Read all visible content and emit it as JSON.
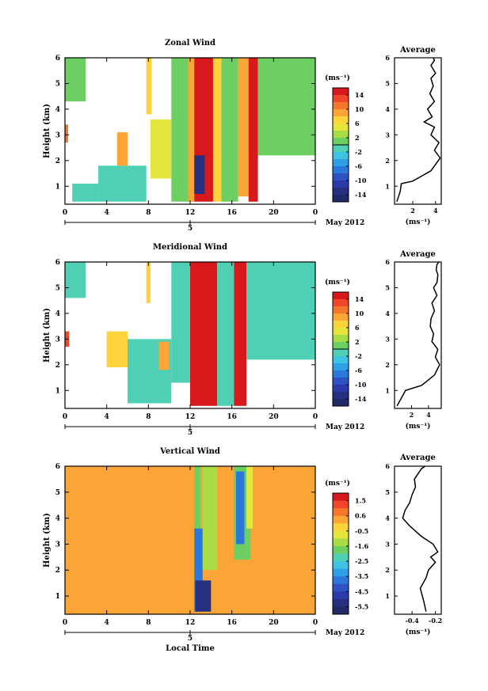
{
  "panels": [
    {
      "title": "Zonal Wind",
      "ylabel": "Height (km)",
      "unit": "(ms⁻¹)",
      "cbar_ticks": [
        "14",
        "10",
        "6",
        "2",
        "-2",
        "-6",
        "-10",
        "-14"
      ],
      "avg_title": "Average",
      "avg_xticks": [
        "2",
        "4"
      ],
      "avg_xlabel": "(ms⁻¹)"
    },
    {
      "title": "Meridional Wind",
      "ylabel": "Height (km)",
      "unit": "(ms⁻¹)",
      "cbar_ticks": [
        "14",
        "10",
        "6",
        "2",
        "-2",
        "-6",
        "-10",
        "-14"
      ],
      "avg_title": "Average",
      "avg_xticks": [
        "2",
        "4"
      ],
      "avg_xlabel": "(ms⁻¹)"
    },
    {
      "title": "Vertical Wind",
      "ylabel": "Height (km)",
      "unit": "(ms⁻¹)",
      "cbar_ticks": [
        "1.5",
        "0.6",
        "-0.5",
        "-1.6",
        "-2.5",
        "-3.5",
        "-4.5",
        "-5.5"
      ],
      "avg_title": "Average",
      "avg_xticks": [
        "-0.4",
        "-0.2"
      ],
      "avg_xlabel": "(ms⁻¹)"
    }
  ],
  "time_ticks": [
    "0",
    "4",
    "8",
    "12",
    "16",
    "20",
    "0"
  ],
  "y_ticks": [
    "1",
    "2",
    "3",
    "4",
    "5",
    "6"
  ],
  "date_day": "5",
  "date_label": "May 2012",
  "xlabel": "Local Time",
  "chart_data": [
    {
      "type": "heatmap",
      "title": "Zonal Wind",
      "xlabel": "",
      "ylabel": "Height (km)",
      "xlim": [
        0,
        24
      ],
      "ylim": [
        0.3,
        6
      ],
      "colorbar_range": [
        -16,
        16
      ],
      "bands": [
        {
          "x0": 7.8,
          "x1": 8.3,
          "y0": 3.8,
          "y1": 6,
          "value": 7
        },
        {
          "x0": 8.2,
          "x1": 10.2,
          "y0": 1.3,
          "y1": 3.6,
          "value": 5
        },
        {
          "x0": 10.2,
          "x1": 12.0,
          "y0": 0.4,
          "y1": 6,
          "value": 2
        },
        {
          "x0": 11.8,
          "x1": 12.6,
          "y0": 0.4,
          "y1": 6,
          "value": 9
        },
        {
          "x0": 12.4,
          "x1": 14.2,
          "y0": 0.4,
          "y1": 6,
          "value": 15
        },
        {
          "x0": 14.2,
          "x1": 15.0,
          "y0": 0.4,
          "y1": 6,
          "value": 8
        },
        {
          "x0": 15.0,
          "x1": 16.6,
          "y0": 0.4,
          "y1": 6,
          "value": 1
        },
        {
          "x0": 16.6,
          "x1": 17.6,
          "y0": 0.6,
          "y1": 6,
          "value": 10
        },
        {
          "x0": 17.6,
          "x1": 18.5,
          "y0": 0.4,
          "y1": 6,
          "value": 15
        },
        {
          "x0": 18.5,
          "x1": 24.0,
          "y0": 2.2,
          "y1": 6,
          "value": 1
        },
        {
          "x0": 0.0,
          "x1": 2.0,
          "y0": 4.3,
          "y1": 6,
          "value": 1
        },
        {
          "x0": 0.7,
          "x1": 3.2,
          "y0": 0.4,
          "y1": 1.1,
          "value": 0
        },
        {
          "x0": 3.2,
          "x1": 7.8,
          "y0": 0.4,
          "y1": 1.8,
          "value": -1
        },
        {
          "x0": 5.0,
          "x1": 6.0,
          "y0": 1.8,
          "y1": 3.1,
          "value": 9
        },
        {
          "x0": 0.0,
          "x1": 0.3,
          "y0": 2.7,
          "y1": 3.4,
          "value": 12
        },
        {
          "x0": 12.4,
          "x1": 13.4,
          "y0": 0.7,
          "y1": 2.2,
          "value": -12
        }
      ],
      "average_profile": {
        "xlabel": "(ms⁻¹)",
        "xlim": [
          0.4,
          4.5
        ],
        "x": [
          0.6,
          0.9,
          1.0,
          2.0,
          3.6,
          4.4,
          3.9,
          4.3,
          3.6,
          3.9,
          3.0,
          3.7,
          3.3,
          3.9,
          3.5,
          3.8,
          3.6,
          4.0,
          3.6,
          3.9,
          3.8
        ],
        "y": [
          0.4,
          0.8,
          1.1,
          1.2,
          1.6,
          2.1,
          2.4,
          2.7,
          3.0,
          3.3,
          3.5,
          3.7,
          4.0,
          4.3,
          4.6,
          4.9,
          5.2,
          5.4,
          5.7,
          5.9,
          6.0
        ]
      }
    },
    {
      "type": "heatmap",
      "title": "Meridional Wind",
      "xlabel": "",
      "ylabel": "Height (km)",
      "xlim": [
        0,
        24
      ],
      "ylim": [
        0.3,
        6
      ],
      "colorbar_range": [
        -16,
        16
      ],
      "bands": [
        {
          "x0": 7.8,
          "x1": 8.2,
          "y0": 4.4,
          "y1": 6,
          "value": 7
        },
        {
          "x0": 4.0,
          "x1": 6.0,
          "y0": 1.9,
          "y1": 3.3,
          "value": 8
        },
        {
          "x0": 6.0,
          "x1": 10.2,
          "y0": 0.5,
          "y1": 3.0,
          "value": 0
        },
        {
          "x0": 9.0,
          "x1": 10.0,
          "y0": 1.8,
          "y1": 2.9,
          "value": 10
        },
        {
          "x0": 10.2,
          "x1": 12.0,
          "y0": 1.3,
          "y1": 6,
          "value": 0
        },
        {
          "x0": 12.0,
          "x1": 14.6,
          "y0": 0.4,
          "y1": 6,
          "value": 15
        },
        {
          "x0": 14.6,
          "x1": 16.2,
          "y0": 0.4,
          "y1": 6,
          "value": 0
        },
        {
          "x0": 16.2,
          "x1": 17.4,
          "y0": 0.4,
          "y1": 6,
          "value": 15
        },
        {
          "x0": 17.4,
          "x1": 24.0,
          "y0": 2.2,
          "y1": 6,
          "value": 0
        },
        {
          "x0": 0.0,
          "x1": 2.0,
          "y0": 4.6,
          "y1": 6,
          "value": 0
        },
        {
          "x0": 0.0,
          "x1": 0.4,
          "y0": 2.7,
          "y1": 3.3,
          "value": 14
        }
      ],
      "average_profile": {
        "xlabel": "(ms⁻¹)",
        "xlim": [
          0,
          5.5
        ],
        "x": [
          0.3,
          0.8,
          1.3,
          3.2,
          4.7,
          5.3,
          4.8,
          5.1,
          4.4,
          4.6,
          4.2,
          4.3,
          4.7,
          4.4,
          5.0,
          4.6,
          5.0,
          5.1,
          4.9,
          5.0,
          5.2
        ],
        "y": [
          0.4,
          0.7,
          1.0,
          1.2,
          1.6,
          2.0,
          2.3,
          2.6,
          2.9,
          3.2,
          3.5,
          3.8,
          4.1,
          4.4,
          4.7,
          5.0,
          5.2,
          5.5,
          5.7,
          5.9,
          6.0
        ]
      }
    },
    {
      "type": "heatmap",
      "title": "Vertical Wind",
      "xlabel": "Local Time",
      "ylabel": "Height (km)",
      "xlim": [
        0,
        24
      ],
      "ylim": [
        0.3,
        6
      ],
      "colorbar_range": [
        -6,
        2
      ],
      "background_value": 0.4,
      "bands": [
        {
          "x0": 12.4,
          "x1": 13.0,
          "y0": 0.4,
          "y1": 6,
          "value": -1.5
        },
        {
          "x0": 12.4,
          "x1": 13.2,
          "y0": 0.4,
          "y1": 3.6,
          "value": -3.5
        },
        {
          "x0": 12.5,
          "x1": 14.0,
          "y0": 0.4,
          "y1": 1.6,
          "value": -5.0
        },
        {
          "x0": 13.2,
          "x1": 14.6,
          "y0": 2.0,
          "y1": 6,
          "value": -1.2
        },
        {
          "x0": 14.6,
          "x1": 15.3,
          "y0": 2.5,
          "y1": 6,
          "value": 0.1
        },
        {
          "x0": 16.2,
          "x1": 17.8,
          "y0": 2.4,
          "y1": 6,
          "value": -1.5
        },
        {
          "x0": 16.4,
          "x1": 17.2,
          "y0": 3.0,
          "y1": 5.8,
          "value": -3.5
        },
        {
          "x0": 17.4,
          "x1": 18.0,
          "y0": 3.6,
          "y1": 6,
          "value": -0.8
        }
      ],
      "average_profile": {
        "xlabel": "(ms⁻¹)",
        "xlim": [
          -0.55,
          -0.15
        ],
        "x": [
          -0.28,
          -0.3,
          -0.33,
          -0.28,
          -0.26,
          -0.2,
          -0.24,
          -0.18,
          -0.22,
          -0.32,
          -0.42,
          -0.48,
          -0.46,
          -0.42,
          -0.4,
          -0.37,
          -0.38,
          -0.35,
          -0.32,
          -0.29
        ],
        "y": [
          0.4,
          0.8,
          1.3,
          1.7,
          2.0,
          2.3,
          2.5,
          2.7,
          3.0,
          3.3,
          3.7,
          4.0,
          4.3,
          4.6,
          4.9,
          5.2,
          5.5,
          5.7,
          5.9,
          6.0
        ]
      }
    }
  ]
}
